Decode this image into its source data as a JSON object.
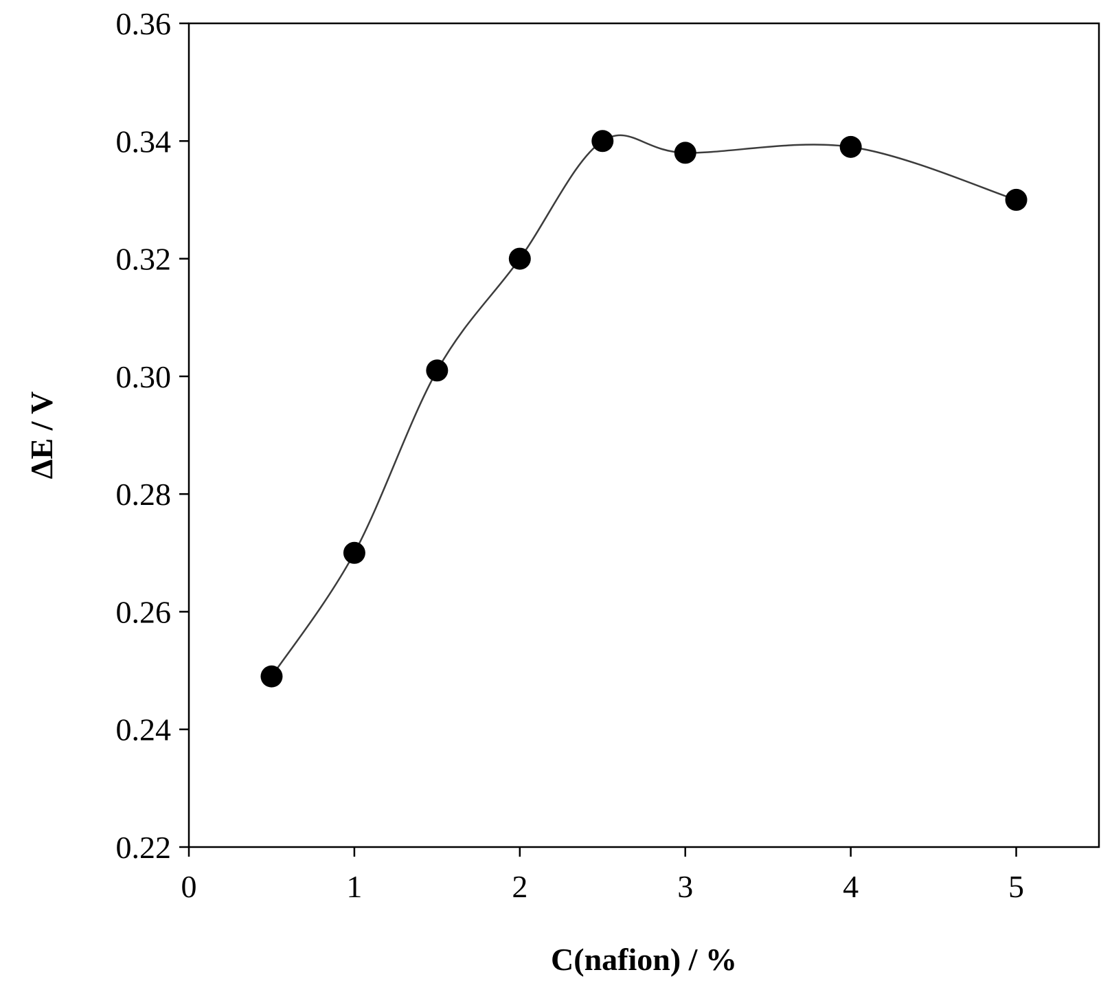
{
  "chart_data": {
    "type": "scatter",
    "title": "",
    "xlabel": "C(nafion) / %",
    "ylabel": "ΔE / V",
    "xlim": [
      0,
      5.5
    ],
    "ylim": [
      0.22,
      0.36
    ],
    "xticks": [
      0,
      1,
      2,
      3,
      4,
      5
    ],
    "xtick_labels": [
      "0",
      "1",
      "2",
      "3",
      "4",
      "5"
    ],
    "yticks": [
      0.22,
      0.24,
      0.26,
      0.28,
      0.3,
      0.32,
      0.34,
      0.36
    ],
    "ytick_labels": [
      "0.22",
      "0.24",
      "0.26",
      "0.28",
      "0.30",
      "0.32",
      "0.34",
      "0.36"
    ],
    "grid": false,
    "legend": "none",
    "smoothed_line": true,
    "series": [
      {
        "x": [
          0.5,
          1.0,
          1.5,
          2.0,
          2.5,
          3.0,
          4.0,
          5.0
        ],
        "y": [
          0.249,
          0.27,
          0.301,
          0.32,
          0.34,
          0.338,
          0.339,
          0.33
        ],
        "marker": "filled-circle",
        "color": "#000000",
        "line_color": "#3c3c3c"
      }
    ]
  }
}
